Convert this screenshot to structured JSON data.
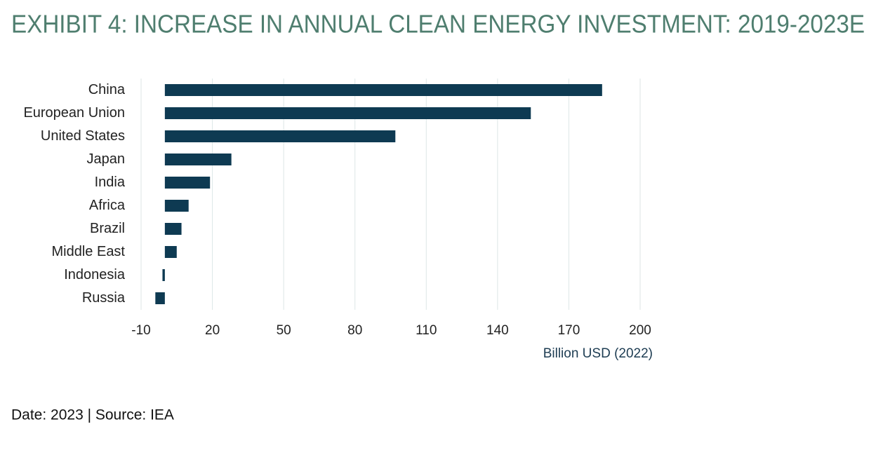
{
  "title": "EXHIBIT 4: INCREASE IN ANNUAL CLEAN ENERGY INVESTMENT: 2019-2023E",
  "chart_data": {
    "type": "barh",
    "categories": [
      "China",
      "European Union",
      "United States",
      "Japan",
      "India",
      "Africa",
      "Brazil",
      "Middle East",
      "Indonesia",
      "Russia"
    ],
    "values": [
      184,
      154,
      97,
      28,
      19,
      10,
      7,
      5,
      -1,
      -4
    ],
    "color": "#0e3a52",
    "xlim": [
      -10,
      200
    ],
    "xticks": [
      -10,
      20,
      50,
      80,
      110,
      140,
      170,
      200
    ],
    "x_label": "Billion USD (2022)",
    "grid": true
  },
  "footer": "Date: 2023 | Source: IEA"
}
